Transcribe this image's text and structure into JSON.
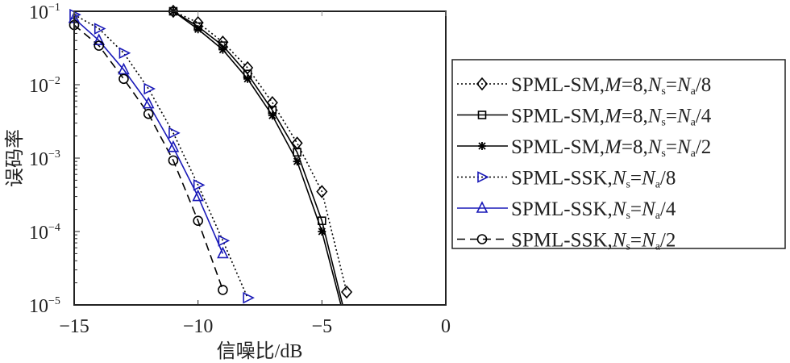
{
  "chart_data": {
    "type": "line",
    "title": "",
    "xlabel": "信噪比/dB",
    "ylabel": "误码率",
    "xlim": [
      -15,
      0
    ],
    "ylim": [
      1e-05,
      0.1
    ],
    "yscale": "log",
    "xticks": [
      {
        "v": -15,
        "label": "−15"
      },
      {
        "v": -10,
        "label": "−10"
      },
      {
        "v": -5,
        "label": "−5"
      },
      {
        "v": 0,
        "label": "0"
      }
    ],
    "yticks": [
      {
        "e": -1,
        "label": "10",
        "exp": "−1"
      },
      {
        "e": -2,
        "label": "10",
        "exp": "−2"
      },
      {
        "e": -3,
        "label": "10",
        "exp": "−3"
      },
      {
        "e": -4,
        "label": "10",
        "exp": "−4"
      },
      {
        "e": -5,
        "label": "10",
        "exp": "−5"
      }
    ],
    "legend_position": "outside-right",
    "series": [
      {
        "name": "SPML-SM,M=8,Ns=Na/8",
        "legend": [
          "SPML-SM,",
          "M",
          "=8,",
          "N",
          "s",
          "=",
          "N",
          "a",
          "/8"
        ],
        "color": "#000000",
        "dash": "2,3",
        "marker": "diamond",
        "x": [
          -11,
          -10,
          -9,
          -8,
          -7,
          -6,
          -5,
          -4
        ],
        "y": [
          0.1,
          0.07,
          0.038,
          0.017,
          0.0057,
          0.0016,
          0.00035,
          1.5e-05
        ]
      },
      {
        "name": "SPML-SM,M=8,Ns=Na/4",
        "legend": [
          "SPML-SM,",
          "M",
          "=8,",
          "N",
          "s",
          "=",
          "N",
          "a",
          "/4"
        ],
        "color": "#000000",
        "dash": "",
        "marker": "square",
        "x": [
          -11,
          -10,
          -9,
          -8,
          -7,
          -6,
          -5,
          -4
        ],
        "y": [
          0.1,
          0.062,
          0.034,
          0.014,
          0.0045,
          0.0012,
          0.00014,
          6e-06
        ]
      },
      {
        "name": "SPML-SM,M=8,Ns=Na/2",
        "legend": [
          "SPML-SM,",
          "M",
          "=8,",
          "N",
          "s",
          "=",
          "N",
          "a",
          "/2"
        ],
        "color": "#000000",
        "dash": "",
        "marker": "star",
        "x": [
          -11,
          -10,
          -9,
          -8,
          -7,
          -6,
          -5,
          -4
        ],
        "y": [
          0.1,
          0.057,
          0.03,
          0.012,
          0.0038,
          0.0009,
          0.0001,
          5e-06
        ]
      },
      {
        "name": "SPML-SSK,Ns=Na/8",
        "legend": [
          "SPML-SSK,",
          "",
          "",
          "N",
          "s",
          "=",
          "N",
          "a",
          "/8"
        ],
        "color": "#1a1ab8",
        "dash": "2,3",
        "dashcolor": "#000000",
        "marker": "triangle-right",
        "x": [
          -15,
          -14,
          -13,
          -12,
          -11,
          -10,
          -9,
          -8
        ],
        "y": [
          0.09,
          0.058,
          0.027,
          0.0088,
          0.0022,
          0.00043,
          7.5e-05,
          1.25e-05
        ]
      },
      {
        "name": "SPML-SSK,Ns=Na/4",
        "legend": [
          "SPML-SSK,",
          "",
          "",
          "N",
          "s",
          "=",
          "N",
          "a",
          "/4"
        ],
        "color": "#1a1ab8",
        "dash": "",
        "marker": "triangle-up",
        "x": [
          -15,
          -14,
          -13,
          -12,
          -11,
          -10,
          -9
        ],
        "y": [
          0.08,
          0.04,
          0.016,
          0.0055,
          0.0014,
          0.0003,
          5e-05
        ]
      },
      {
        "name": "SPML-SSK,Ns=Na/2",
        "legend": [
          "SPML-SSK,",
          "",
          "",
          "N",
          "s",
          "=",
          "N",
          "a",
          "/2"
        ],
        "color": "#000000",
        "dash": "10,6",
        "marker": "circle",
        "x": [
          -15,
          -14,
          -13,
          -12,
          -11,
          -10,
          -9
        ],
        "y": [
          0.065,
          0.034,
          0.012,
          0.004,
          0.00093,
          0.00014,
          1.6e-05
        ]
      }
    ]
  }
}
